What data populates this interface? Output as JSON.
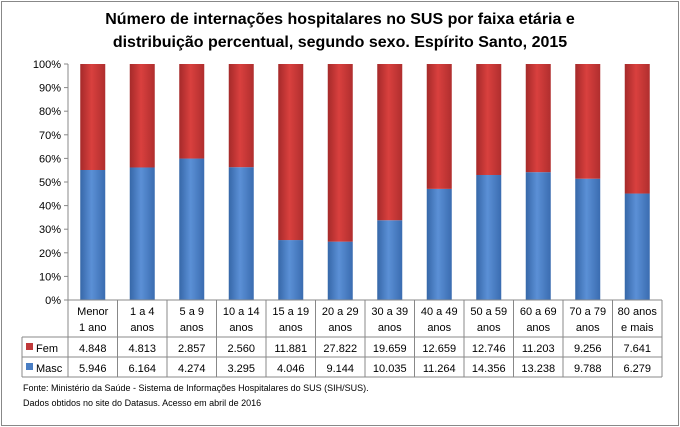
{
  "chart_data": {
    "type": "bar",
    "stacked": "percent",
    "title": "Número de internações hospitalares no SUS por faixa etária e distribuição percentual, segundo sexo. Espírito Santo, 2015",
    "title_lines": [
      "Número de internações hospitalares no SUS por faixa etária e",
      "distribuição percentual, segundo sexo. Espírito Santo, 2015"
    ],
    "categories": [
      [
        "Menor",
        "1 ano"
      ],
      [
        "1 a 4",
        "anos"
      ],
      [
        "5 a 9",
        "anos"
      ],
      [
        "10 a 14",
        "anos"
      ],
      [
        "15 a 19",
        "anos"
      ],
      [
        "20 a 29",
        "anos"
      ],
      [
        "30 a 39",
        "anos"
      ],
      [
        "40 a 49",
        "anos"
      ],
      [
        "50 a 59",
        "anos"
      ],
      [
        "60 a 69",
        "anos"
      ],
      [
        "70 a 79",
        "anos"
      ],
      [
        "80 anos",
        "e mais"
      ]
    ],
    "series": [
      {
        "name": "Fem",
        "color": "#c0393a",
        "values": [
          4848,
          4813,
          2857,
          2560,
          11881,
          27822,
          19659,
          12659,
          12746,
          11203,
          9256,
          7641
        ],
        "labels": [
          "4.848",
          "4.813",
          "2.857",
          "2.560",
          "11.881",
          "27.822",
          "19.659",
          "12.659",
          "12.746",
          "11.203",
          "9.256",
          "7.641"
        ]
      },
      {
        "name": "Masc",
        "color": "#4a7ec4",
        "values": [
          5946,
          6164,
          4274,
          3295,
          4046,
          9144,
          10035,
          11264,
          14356,
          13238,
          9788,
          6279
        ],
        "labels": [
          "5.946",
          "6.164",
          "4.274",
          "3.295",
          "4.046",
          "9.144",
          "10.035",
          "11.264",
          "14.356",
          "13.238",
          "9.788",
          "6.279"
        ]
      }
    ],
    "y_ticks": [
      "0%",
      "10%",
      "20%",
      "30%",
      "40%",
      "50%",
      "60%",
      "70%",
      "80%",
      "90%",
      "100%"
    ],
    "ylim": [
      0,
      100
    ],
    "grid": false,
    "legend": "data-table"
  },
  "source": {
    "line1": "Fonte: Ministério da Saúde - Sistema de Informações Hospitalares do SUS (SIH/SUS).",
    "line2": "Dados obtidos no site do Datasus. Acesso em abril de 2016"
  }
}
